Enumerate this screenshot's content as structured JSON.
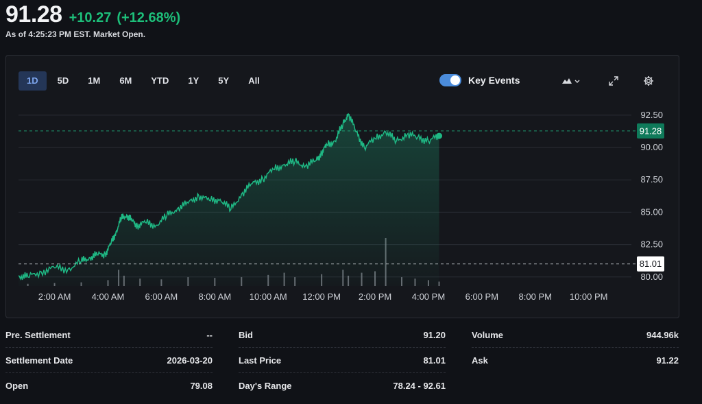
{
  "quote": {
    "price": "91.28",
    "change": "+10.27",
    "change_pct": "(+12.68%)",
    "as_of": "As of 4:25:23 PM EST. Market Open.",
    "up_color": "#1dbf7a"
  },
  "toolbar": {
    "ranges": [
      "1D",
      "5D",
      "1M",
      "6M",
      "YTD",
      "1Y",
      "5Y",
      "All"
    ],
    "active_range": "1D",
    "key_events_label": "Key Events",
    "key_events_on": true,
    "chart_type_icon": "mountain-chart-icon",
    "expand_icon": "expand-icon",
    "settings_icon": "gear-icon"
  },
  "chart_data": {
    "type": "area",
    "x_unit": "hours after midnight EST",
    "xlim": [
      0.65,
      23.6
    ],
    "ylim": [
      79.3,
      93.5
    ],
    "y_ticks": [
      "92.50",
      "90.00",
      "87.50",
      "85.00",
      "82.50",
      "80.00"
    ],
    "y_tick_values": [
      92.5,
      90.0,
      87.5,
      85.0,
      82.5,
      80.0
    ],
    "x_ticks": [
      "2:00 AM",
      "4:00 AM",
      "6:00 AM",
      "8:00 AM",
      "10:00 AM",
      "12:00 PM",
      "2:00 PM",
      "4:00 PM",
      "6:00 PM",
      "8:00 PM",
      "10:00 PM"
    ],
    "x_tick_values": [
      2,
      4,
      6,
      8,
      10,
      12,
      14,
      16,
      18,
      20,
      22
    ],
    "last_price_label": "91.28",
    "last_price": 91.28,
    "reference_label": "81.01",
    "reference_price": 81.01,
    "series": [
      {
        "x": [
          0.65,
          1.0,
          1.5,
          2.0,
          2.5,
          3.0,
          3.3,
          3.6,
          3.9,
          4.1,
          4.3,
          4.5,
          4.7,
          4.9,
          5.1,
          5.4,
          5.8,
          6.2,
          6.6,
          7.0,
          7.4,
          7.8,
          8.2,
          8.6,
          9.0,
          9.4,
          9.8,
          10.2,
          10.6,
          11.0,
          11.4,
          11.8,
          12.0,
          12.2,
          12.5,
          12.8,
          13.0,
          13.3,
          13.6,
          14.0,
          14.4,
          14.8,
          15.2,
          15.6,
          16.0,
          16.4
        ],
        "y": [
          80.1,
          80.0,
          80.4,
          80.7,
          80.6,
          81.2,
          81.5,
          81.7,
          81.8,
          82.5,
          83.5,
          84.5,
          84.8,
          84.3,
          84.0,
          84.2,
          84.0,
          84.7,
          85.3,
          85.7,
          86.3,
          85.9,
          86.0,
          85.2,
          86.4,
          87.2,
          87.6,
          88.3,
          88.7,
          88.9,
          88.6,
          89.0,
          89.6,
          90.2,
          90.5,
          91.8,
          92.6,
          91.2,
          90.0,
          90.7,
          91.2,
          90.5,
          91.0,
          90.8,
          90.5,
          90.9
        ]
      }
    ],
    "volume": {
      "x": [
        1.0,
        2.0,
        3.0,
        4.0,
        4.4,
        4.6,
        5.2,
        6.0,
        7.0,
        8.0,
        9.0,
        10.0,
        10.6,
        11.0,
        12.0,
        12.8,
        13.0,
        13.5,
        14.0,
        14.4,
        15.0,
        15.5,
        16.0,
        16.4
      ],
      "values": [
        3,
        4,
        5,
        8,
        22,
        14,
        10,
        9,
        12,
        11,
        12,
        15,
        18,
        12,
        16,
        22,
        14,
        18,
        20,
        65,
        12,
        10,
        8,
        6
      ]
    },
    "line_color": "#1fb884",
    "grid": true
  },
  "stats": [
    [
      {
        "label": "Pre. Settlement",
        "value": "--"
      },
      {
        "label": "Settlement Date",
        "value": "2026-03-20"
      },
      {
        "label": "Open",
        "value": "79.08"
      }
    ],
    [
      {
        "label": "Bid",
        "value": "91.20"
      },
      {
        "label": "Last Price",
        "value": "81.01"
      },
      {
        "label": "Day's Range",
        "value": "78.24 - 92.61"
      }
    ],
    [
      {
        "label": "Volume",
        "value": "944.96k"
      },
      {
        "label": "Ask",
        "value": "91.22"
      }
    ]
  ]
}
